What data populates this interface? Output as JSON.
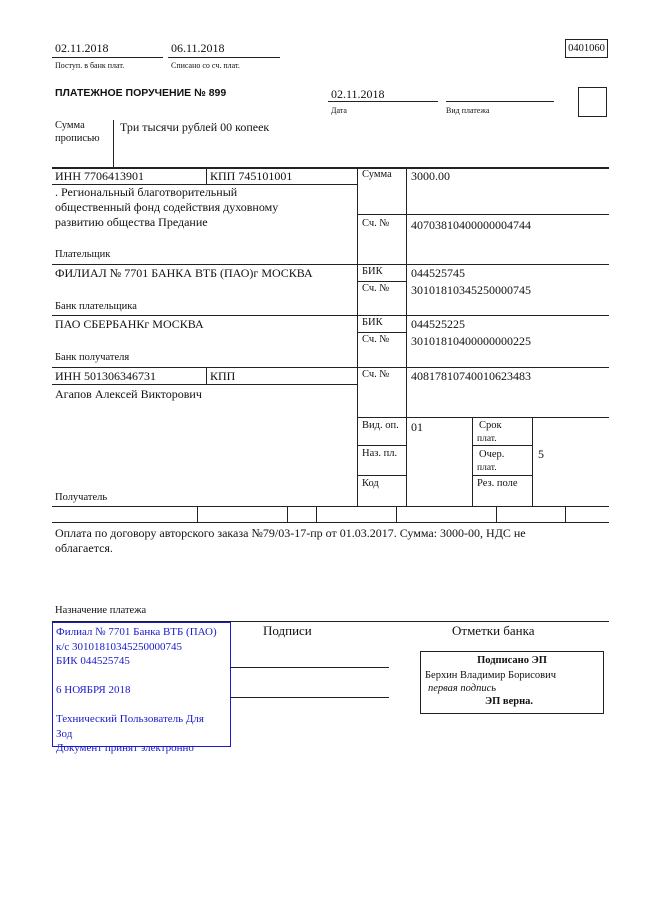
{
  "header": {
    "received_date": "02.11.2018",
    "received_label": "Поступ. в банк плат.",
    "debited_date": "06.11.2018",
    "debited_label": "Списано со сч. плат.",
    "form_code": "0401060",
    "title": "ПЛАТЕЖНОЕ ПОРУЧЕНИЕ № 899",
    "date": "02.11.2018",
    "date_label": "Дата",
    "payment_type_label": "Вид платежа",
    "payment_type": ""
  },
  "amount_words": {
    "label_1": "Сумма",
    "label_2": "прописью",
    "value": "Три тысячи рублей 00 копеек"
  },
  "payer": {
    "inn": "ИНН 7706413901",
    "kpp": "КПП 745101001",
    "name_lines": [
      ". Региональный благотворительный",
      "общественный фонд содействия духовному",
      "развитию общества Предание"
    ],
    "label": "Плательщик",
    "amount_label": "Сумма",
    "amount": "3000.00",
    "account_label": "Сч. №",
    "account": "40703810400000004744"
  },
  "payer_bank": {
    "name": "ФИЛИАЛ № 7701 БАНКА ВТБ (ПАО)г МОСКВА",
    "label": "Банк плательщика",
    "bik_label": "БИК",
    "bik": "044525745",
    "account_label": "Сч. №",
    "account": "30101810345250000745"
  },
  "payee_bank": {
    "name": "ПАО СБЕРБАНКг МОСКВА",
    "label": "Банк получателя",
    "bik_label": "БИК",
    "bik": "044525225",
    "account_label": "Сч. №",
    "account": "30101810400000000225"
  },
  "payee": {
    "inn": "ИНН 501306346731",
    "kpp": "КПП",
    "name": "Агапов Алексей Викторович",
    "label": "Получатель",
    "account_label": "Сч. №",
    "account": "40817810740010623483",
    "op_type_label": "Вид. оп.",
    "op_type": "01",
    "purpose_code_label": "Наз. пл.",
    "code_label": "Код",
    "term_label_1": "Срок",
    "term_label_2": "плат.",
    "priority_label_1": "Очер.",
    "priority_label_2": "плат.",
    "priority": "5",
    "reserve_label": "Рез. поле"
  },
  "purpose": {
    "lines": [
      "Оплата по договору авторского заказа №79/03-17-пр от 01.03.2017. Сумма: 3000-00, НДС не",
      "облагается."
    ],
    "label": "Назначение платежа"
  },
  "stamp": {
    "lines": [
      "Филиал № 7701 Банка ВТБ (ПАО)",
      "к/с 30101810345250000745",
      "БИК 044525745",
      "",
      "6 НОЯБРЯ 2018",
      "",
      "Технический Пользователь Для",
      "Зод",
      "Документ принят электронно"
    ],
    "color": "#1a1acc"
  },
  "signatures": {
    "label": "Подписи"
  },
  "bank_marks": {
    "label": "Отметки банка",
    "signed": "Подписано ЭП",
    "signer": "Берхин Владимир Борисович",
    "role": "первая подпись",
    "verified": "ЭП верна."
  }
}
